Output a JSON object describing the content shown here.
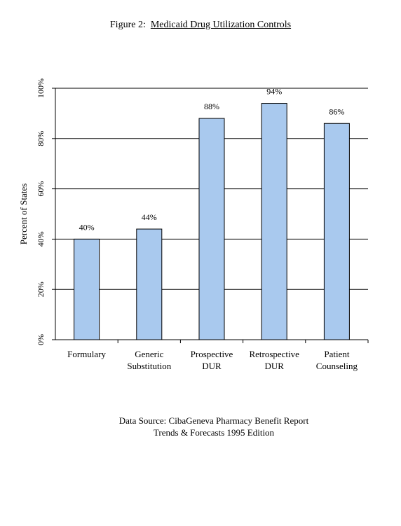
{
  "figure": {
    "label": "Figure 2:",
    "title": "Medicaid Drug Utilization Controls"
  },
  "source": {
    "line1": "Data Source: CibaGeneva Pharmacy Benefit Report",
    "line2": "Trends & Forecasts 1995 Edition"
  },
  "chart_data": {
    "type": "bar",
    "title": "Medicaid Drug Utilization Controls",
    "xlabel": "",
    "ylabel": "Percent of States",
    "ylim": [
      0,
      100
    ],
    "yticks": [
      "0%",
      "20%",
      "40%",
      "60%",
      "80%",
      "100%"
    ],
    "grid": true,
    "bar_color": "#a9c9ee",
    "categories": [
      [
        "Formulary"
      ],
      [
        "Generic",
        "Substitution"
      ],
      [
        "Prospective",
        "DUR"
      ],
      [
        "Retrospective",
        "DUR"
      ],
      [
        "Patient",
        "Counseling"
      ]
    ],
    "values": [
      40,
      44,
      88,
      94,
      86
    ],
    "data_labels": [
      "40%",
      "44%",
      "88%",
      "94%",
      "86%"
    ]
  }
}
